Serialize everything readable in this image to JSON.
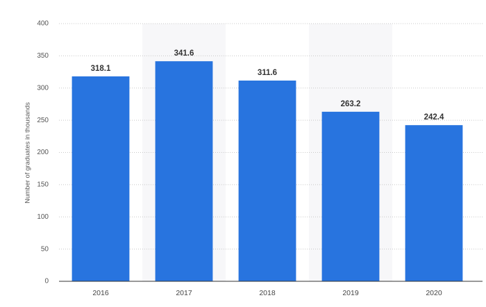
{
  "chart_data": {
    "type": "bar",
    "y_label": "Number of graduates in thousands",
    "categories": [
      "2016",
      "2017",
      "2018",
      "2019",
      "2020"
    ],
    "values": [
      318.1,
      341.6,
      311.6,
      263.2,
      242.4
    ],
    "color": "#2874df",
    "ylim": [
      0,
      400
    ],
    "yticks": [
      0,
      50,
      100,
      150,
      200,
      250,
      300,
      350,
      400
    ],
    "grid": true
  }
}
